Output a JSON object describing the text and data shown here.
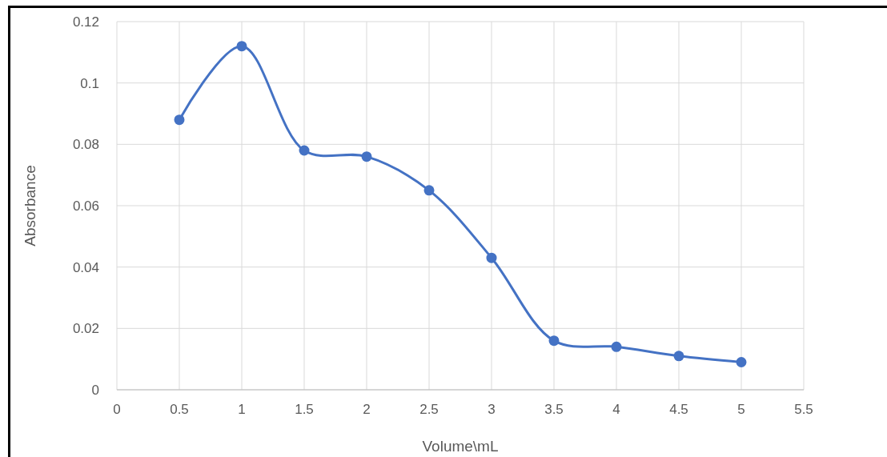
{
  "chart_data": {
    "type": "line",
    "xlabel": "Volume\\mL",
    "ylabel": "Absorbance",
    "x": [
      0.5,
      1,
      1.5,
      2,
      2.5,
      3,
      3.5,
      4,
      4.5,
      5
    ],
    "series": [
      {
        "color": "#4472c4",
        "values": [
          0.088,
          0.112,
          0.078,
          0.076,
          0.065,
          0.043,
          0.016,
          0.014,
          0.011,
          0.009
        ]
      }
    ],
    "xlim": [
      0,
      5.5
    ],
    "xticks": [
      0,
      0.5,
      1,
      1.5,
      2,
      2.5,
      3,
      3.5,
      4,
      4.5,
      5,
      5.5
    ],
    "ylim": [
      0,
      0.12
    ],
    "yticks": [
      0,
      0.02,
      0.04,
      0.06,
      0.08,
      0.1,
      0.12
    ],
    "grid": true,
    "marker": "circle",
    "line_style": "solid"
  }
}
